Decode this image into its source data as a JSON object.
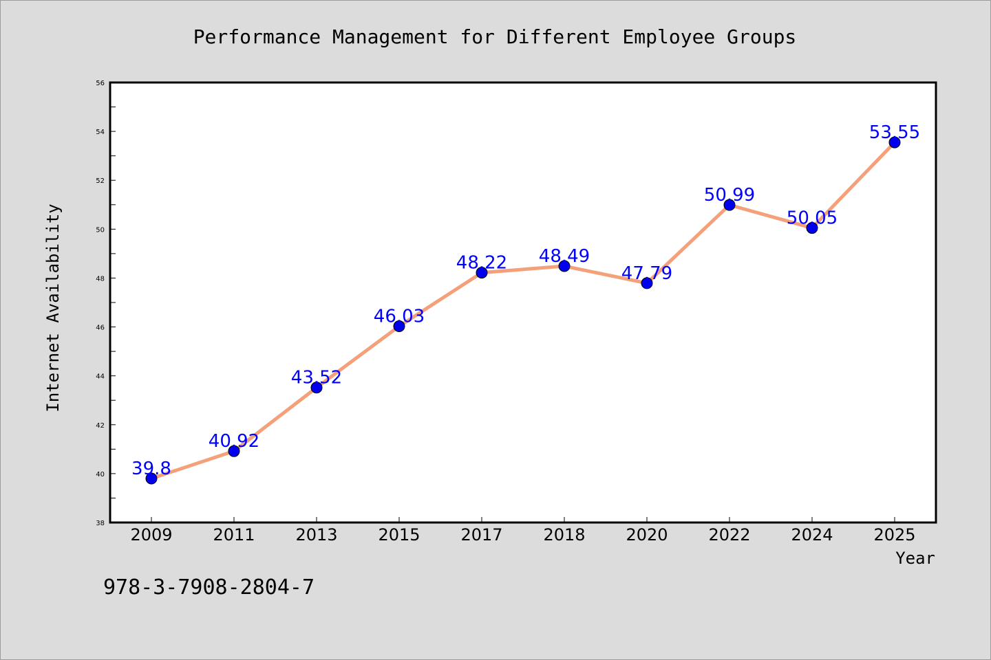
{
  "chart_data": {
    "type": "line",
    "title": "Performance Management for Different Employee Groups",
    "xlabel": "Year",
    "ylabel": "Internet Availability",
    "categories": [
      "2009",
      "2011",
      "2013",
      "2015",
      "2017",
      "2018",
      "2020",
      "2022",
      "2024",
      "2025"
    ],
    "series": [
      {
        "values": [
          39.8,
          40.92,
          43.52,
          46.03,
          48.22,
          48.49,
          47.79,
          50.99,
          50.05,
          53.55
        ],
        "data_labels": [
          "39.8",
          "40.92",
          "43.52",
          "46.03",
          "48.22",
          "48.49",
          "47.79",
          "50.99",
          "50.05",
          "53.55"
        ],
        "line_color": "#f4a07a",
        "marker_color": "#0000ee"
      }
    ],
    "ylim": [
      38,
      56
    ],
    "yticks": [
      38,
      40,
      42,
      44,
      46,
      48,
      50,
      52,
      54,
      56
    ],
    "ytick_labels": [
      "38",
      "40",
      "42",
      "44",
      "46",
      "48",
      "50",
      "52",
      "54",
      "56"
    ],
    "grid": false,
    "legend": "none",
    "label_color": "#0000ff"
  },
  "footer_text": "978-3-7908-2804-7",
  "colors": {
    "background": "#dcdcdc",
    "plot_background": "#ffffff"
  }
}
